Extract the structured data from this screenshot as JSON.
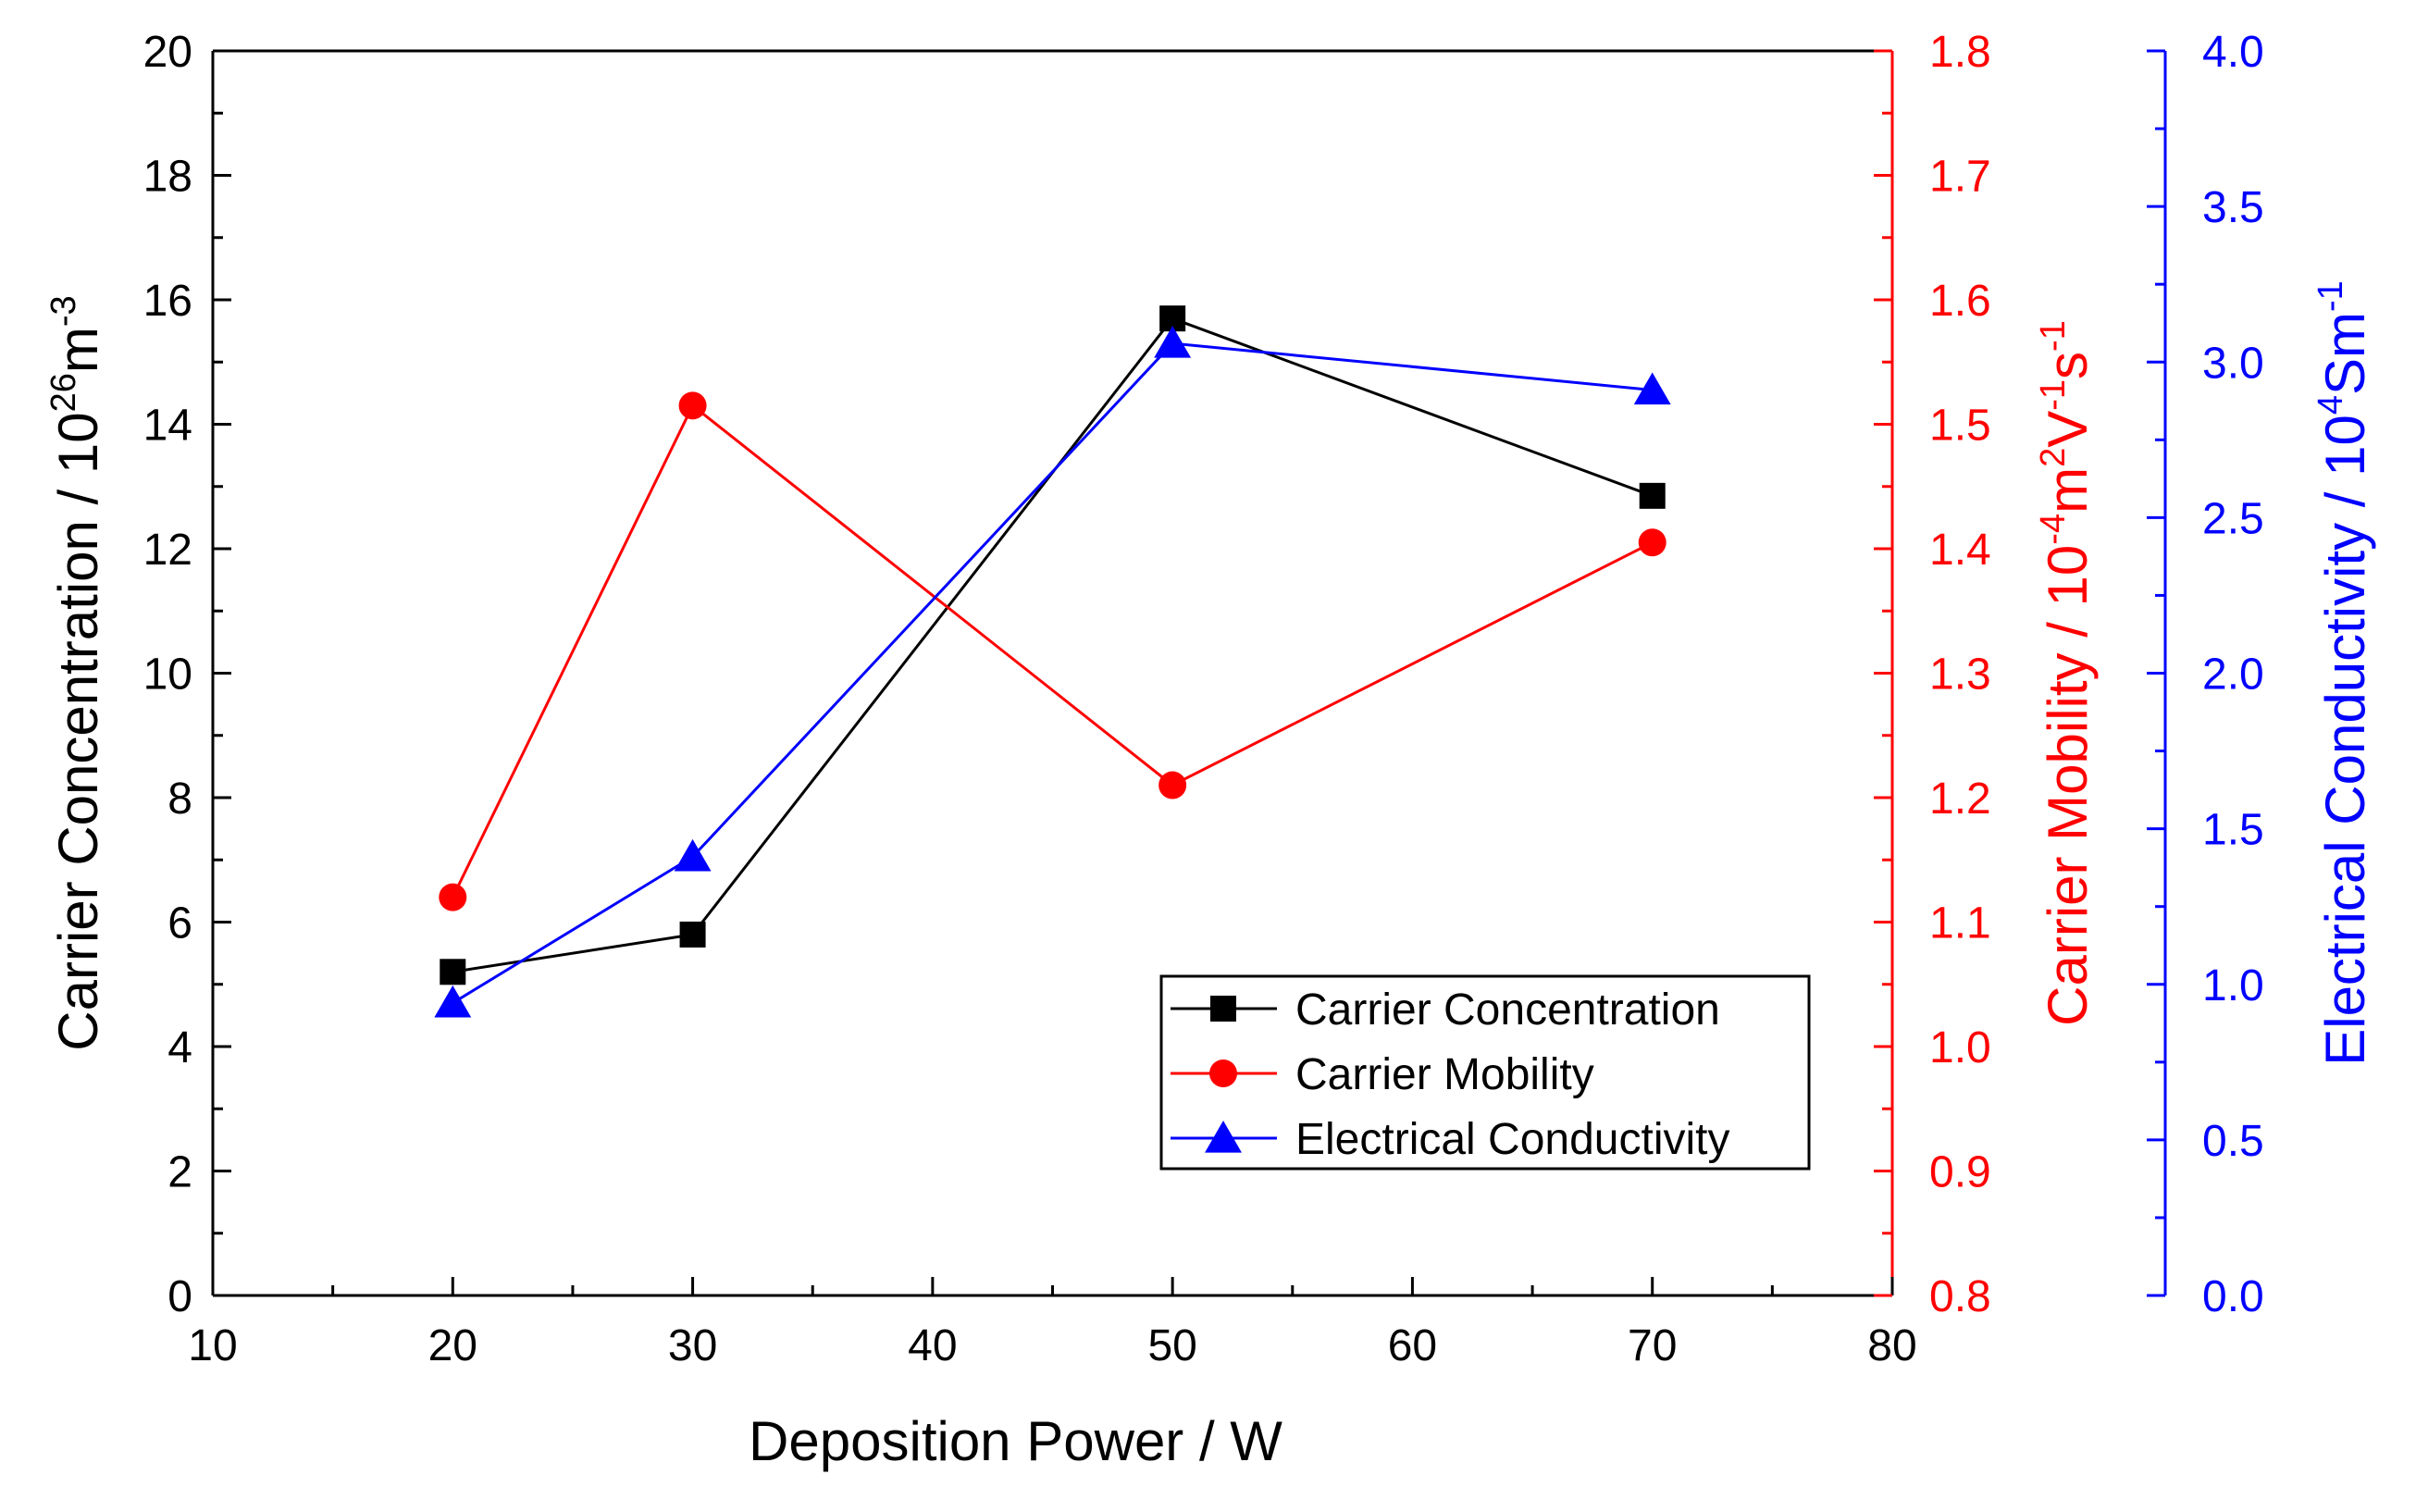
{
  "chart_data": {
    "type": "line",
    "title": "",
    "x": {
      "label": "Deposition Power / W",
      "lim": [
        10,
        80
      ],
      "major_ticks": [
        10,
        20,
        30,
        40,
        50,
        60,
        70,
        80
      ],
      "minor_step": 5
    },
    "y_left": {
      "label_parts": [
        {
          "t": "Carrier Concentration / 10",
          "sup": false
        },
        {
          "t": "26",
          "sup": true
        },
        {
          "t": "m",
          "sup": false
        },
        {
          "t": "-3",
          "sup": true
        }
      ],
      "lim": [
        0,
        20
      ],
      "major_ticks": [
        0,
        2,
        4,
        6,
        8,
        10,
        12,
        14,
        16,
        18,
        20
      ],
      "tick_labels": [
        "0",
        "2",
        "4",
        "6",
        "8",
        "10",
        "12",
        "14",
        "16",
        "18",
        "20"
      ],
      "minor_step": 1,
      "color": "#000000"
    },
    "y_right1": {
      "label_parts": [
        {
          "t": "Carrier Mobility / 10",
          "sup": false
        },
        {
          "t": "-4",
          "sup": true
        },
        {
          "t": "m",
          "sup": false
        },
        {
          "t": "2",
          "sup": true
        },
        {
          "t": "V",
          "sup": false
        },
        {
          "t": "-1",
          "sup": true
        },
        {
          "t": "s",
          "sup": false
        },
        {
          "t": "-1",
          "sup": true
        }
      ],
      "lim": [
        0.8,
        1.8
      ],
      "major_ticks": [
        0.8,
        0.9,
        1.0,
        1.1,
        1.2,
        1.3,
        1.4,
        1.5,
        1.6,
        1.7,
        1.8
      ],
      "tick_labels": [
        "0.8",
        "0.9",
        "1.0",
        "1.1",
        "1.2",
        "1.3",
        "1.4",
        "1.5",
        "1.6",
        "1.7",
        "1.8"
      ],
      "minor_step": 0.05,
      "color": "#ff0000"
    },
    "y_right2": {
      "label_parts": [
        {
          "t": "Electrical Conductivity / 10",
          "sup": false
        },
        {
          "t": "4",
          "sup": true
        },
        {
          "t": "Sm",
          "sup": false
        },
        {
          "t": "-1",
          "sup": true
        }
      ],
      "lim": [
        0.0,
        4.0
      ],
      "major_ticks": [
        0.0,
        0.5,
        1.0,
        1.5,
        2.0,
        2.5,
        3.0,
        3.5,
        4.0
      ],
      "tick_labels": [
        "0.0",
        "0.5",
        "1.0",
        "1.5",
        "2.0",
        "2.5",
        "3.0",
        "3.5",
        "4.0"
      ],
      "minor_step": 0.25,
      "color": "#0000ff"
    },
    "series": [
      {
        "name": "Carrier Concentration",
        "axis": "y_left",
        "color": "#000000",
        "marker": "square",
        "x": [
          20,
          30,
          50,
          70
        ],
        "values": [
          5.2,
          5.8,
          15.7,
          12.85
        ]
      },
      {
        "name": "Carrier Mobility",
        "axis": "y_right1",
        "color": "#ff0000",
        "marker": "circle",
        "x": [
          20,
          30,
          50,
          70
        ],
        "values": [
          1.12,
          1.515,
          1.21,
          1.405
        ]
      },
      {
        "name": "Electrical Conductivity",
        "axis": "y_right2",
        "color": "#0000ff",
        "marker": "triangle",
        "x": [
          20,
          30,
          50,
          70
        ],
        "values": [
          0.94,
          1.41,
          3.06,
          2.91
        ]
      }
    ],
    "legend": {
      "position": "lower-right",
      "entries": [
        "Carrier Concentration",
        "Carrier Mobility",
        "Electrical Conductivity"
      ]
    }
  }
}
